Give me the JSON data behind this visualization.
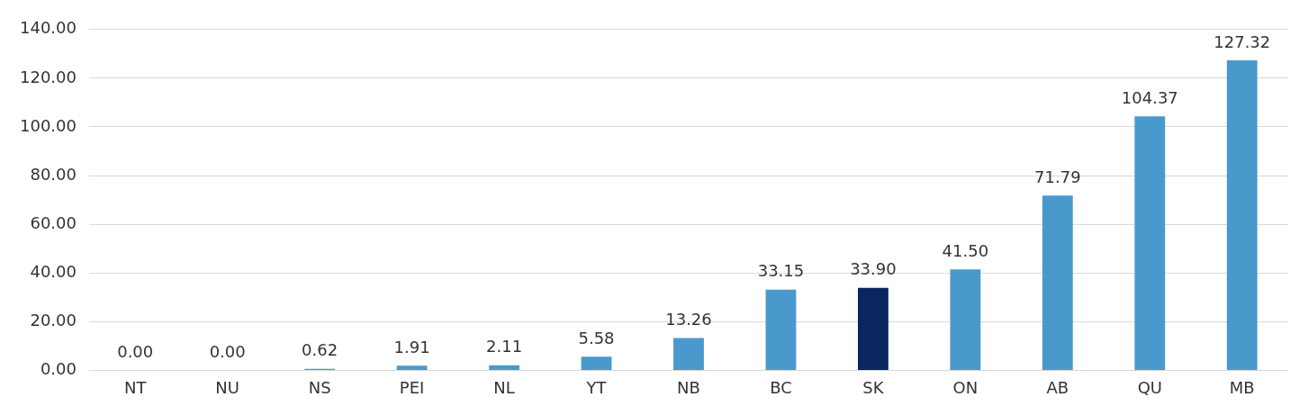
{
  "chart_data": {
    "type": "bar",
    "categories": [
      "NT",
      "NU",
      "NS",
      "PEI",
      "NL",
      "YT",
      "NB",
      "BC",
      "SK",
      "ON",
      "AB",
      "QU",
      "MB"
    ],
    "values": [
      0,
      0,
      0.62,
      1.91,
      2.11,
      5.58,
      13.26,
      33.15,
      33.9,
      41.5,
      71.79,
      104.37,
      127.32
    ],
    "colors": [
      "#4a99cc",
      "#4a99cc",
      "#4a99cc",
      "#4a99cc",
      "#4a99cc",
      "#4a99cc",
      "#4a99cc",
      "#4a99cc",
      "#0b2560",
      "#4a99cc",
      "#4a99cc",
      "#4a99cc",
      "#4a99cc"
    ],
    "value_labels": [
      "0.00",
      "0.00",
      "0.62",
      "1.91",
      "2.11",
      "5.58",
      "13.26",
      "33.15",
      "33.90",
      "41.50",
      "71.79",
      "104.37",
      "127.32"
    ],
    "ylim": [
      0,
      140
    ],
    "yticks": [
      {
        "value": 0,
        "label": "0.00"
      },
      {
        "value": 20,
        "label": "20.00"
      },
      {
        "value": 40,
        "label": "40.00"
      },
      {
        "value": 60,
        "label": "60.00"
      },
      {
        "value": 80,
        "label": "80.00"
      },
      {
        "value": 100,
        "label": "100.00"
      },
      {
        "value": 120,
        "label": "120.00"
      },
      {
        "value": 140,
        "label": "140.00"
      }
    ],
    "grid": "y",
    "legend": false
  }
}
